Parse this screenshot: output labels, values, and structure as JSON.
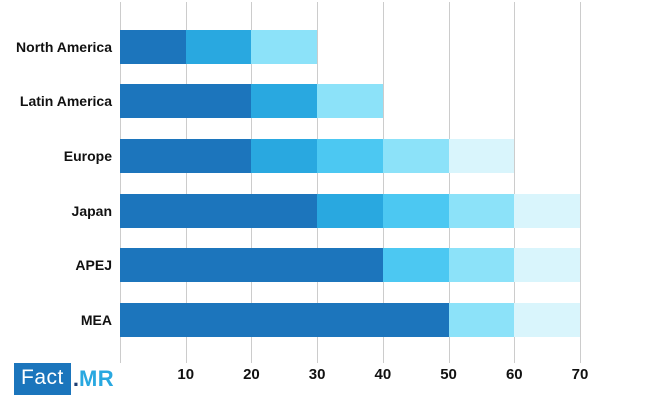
{
  "chart_data": {
    "type": "bar",
    "orientation": "horizontal",
    "stacked": true,
    "title": "",
    "xlabel": "",
    "ylabel": "",
    "xlim": [
      0,
      70
    ],
    "xticks": [
      10,
      20,
      30,
      40,
      50,
      60,
      70
    ],
    "gridline_values": [
      0,
      10,
      20,
      30,
      40,
      50,
      60,
      70
    ],
    "grid": true,
    "legend": "none",
    "categories": [
      "North America",
      "Latin America",
      "Europe",
      "Japan",
      "APEJ",
      "MEA"
    ],
    "totals": [
      30,
      40,
      60,
      70,
      70,
      70
    ],
    "palette": {
      "dark_blue": "#1c75bc",
      "medium_blue": "#29a8e0",
      "bright_sky": "#4cc8f2",
      "light_cyan": "#8ce2f9",
      "pale_cyan": "#d9f5fc"
    },
    "bars": [
      {
        "category": "North America",
        "segments": [
          {
            "value": 10,
            "color": "#1c75bc"
          },
          {
            "value": 10,
            "color": "#29a8e0"
          },
          {
            "value": 10,
            "color": "#8ce2f9"
          }
        ]
      },
      {
        "category": "Latin America",
        "segments": [
          {
            "value": 20,
            "color": "#1c75bc"
          },
          {
            "value": 10,
            "color": "#29a8e0"
          },
          {
            "value": 10,
            "color": "#8ce2f9"
          }
        ]
      },
      {
        "category": "Europe",
        "segments": [
          {
            "value": 20,
            "color": "#1c75bc"
          },
          {
            "value": 10,
            "color": "#29a8e0"
          },
          {
            "value": 10,
            "color": "#4cc8f2"
          },
          {
            "value": 10,
            "color": "#8ce2f9"
          },
          {
            "value": 10,
            "color": "#d9f5fc"
          }
        ]
      },
      {
        "category": "Japan",
        "segments": [
          {
            "value": 30,
            "color": "#1c75bc"
          },
          {
            "value": 10,
            "color": "#29a8e0"
          },
          {
            "value": 10,
            "color": "#4cc8f2"
          },
          {
            "value": 10,
            "color": "#8ce2f9"
          },
          {
            "value": 10,
            "color": "#d9f5fc"
          }
        ]
      },
      {
        "category": "APEJ",
        "segments": [
          {
            "value": 40,
            "color": "#1c75bc"
          },
          {
            "value": 10,
            "color": "#4cc8f2"
          },
          {
            "value": 10,
            "color": "#8ce2f9"
          },
          {
            "value": 10,
            "color": "#d9f5fc"
          }
        ]
      },
      {
        "category": "MEA",
        "segments": [
          {
            "value": 50,
            "color": "#1c75bc"
          },
          {
            "value": 10,
            "color": "#8ce2f9"
          },
          {
            "value": 10,
            "color": "#d9f5fc"
          }
        ]
      }
    ],
    "gridline_color": "#cccccc",
    "tick_label_color": "#111111",
    "category_label_color": "#111111"
  },
  "branding": {
    "fact": "Fact",
    "dot": ".",
    "mr": "MR",
    "box_color": "#1b75bc",
    "dot_color": "#1d3e74",
    "mr_color": "#29a8e0"
  }
}
